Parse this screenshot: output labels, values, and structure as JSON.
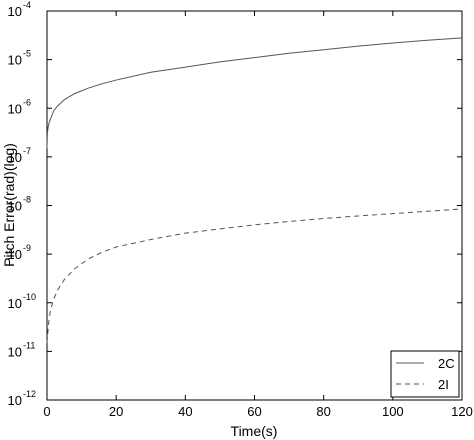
{
  "chart_data": {
    "type": "line",
    "title": "",
    "xlabel": "Time(s)",
    "ylabel": "Pitch Error(rad)(log)",
    "xlim": [
      0,
      120
    ],
    "ylim": [
      1e-12,
      0.0001
    ],
    "yscale": "log",
    "grid": false,
    "legend_position": "bottom-right",
    "x_ticks": [
      "0",
      "20",
      "40",
      "60",
      "80",
      "100",
      "120"
    ],
    "y_ticks": [
      {
        "base": "10",
        "exp": "-12"
      },
      {
        "base": "10",
        "exp": "-11"
      },
      {
        "base": "10",
        "exp": "-10"
      },
      {
        "base": "10",
        "exp": "-9"
      },
      {
        "base": "10",
        "exp": "-8"
      },
      {
        "base": "10",
        "exp": "-7"
      },
      {
        "base": "10",
        "exp": "-6"
      },
      {
        "base": "10",
        "exp": "-5"
      },
      {
        "base": "10",
        "exp": "-4"
      }
    ],
    "series": [
      {
        "name": "2C",
        "style": "solid",
        "color": "#555555",
        "x": [
          0,
          0.1,
          0.3,
          0.6,
          1,
          2,
          3,
          5,
          8,
          12,
          16,
          20,
          30,
          40,
          50,
          60,
          70,
          80,
          90,
          100,
          110,
          120
        ],
        "y": [
          1.5e-07,
          3e-07,
          4e-07,
          5e-07,
          6e-07,
          9e-07,
          1.1e-06,
          1.5e-06,
          2e-06,
          2.6e-06,
          3.2e-06,
          3.8e-06,
          5.5e-06,
          7e-06,
          9e-06,
          1.1e-05,
          1.35e-05,
          1.6e-05,
          1.9e-05,
          2.2e-05,
          2.5e-05,
          2.8e-05
        ]
      },
      {
        "name": "2I",
        "style": "dashed",
        "color": "#555555",
        "x": [
          0,
          0.5,
          1,
          2,
          3,
          5,
          8,
          12,
          16,
          20,
          30,
          40,
          50,
          60,
          70,
          80,
          90,
          100,
          110,
          120
        ],
        "y": [
          1.5e-11,
          4e-11,
          7e-11,
          1.2e-10,
          1.8e-10,
          3e-10,
          5e-10,
          8e-10,
          1.1e-09,
          1.4e-09,
          2e-09,
          2.7e-09,
          3.3e-09,
          4e-09,
          4.7e-09,
          5.4e-09,
          6.1e-09,
          6.8e-09,
          7.6e-09,
          8.5e-09
        ]
      }
    ]
  }
}
